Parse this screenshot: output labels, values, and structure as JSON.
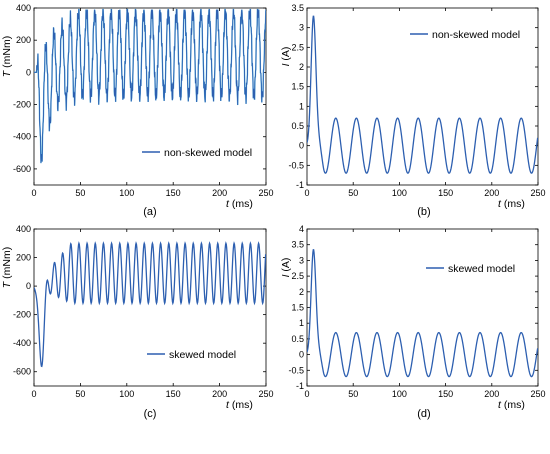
{
  "figure": {
    "colors": {
      "line": "#2d5fb0",
      "line_light": "#5db8e0",
      "axes": "#000000"
    }
  },
  "chart_data": [
    {
      "id": "a",
      "type": "line",
      "caption": "(a)",
      "ylabel_var": "T",
      "ylabel_unit": "(mNm)",
      "xlabel_var": "t",
      "xlabel_unit": "(ms)",
      "xlim": [
        0,
        250
      ],
      "ylim": [
        -700,
        400
      ],
      "xticks": [
        0,
        50,
        100,
        150,
        200,
        250
      ],
      "yticks": [
        400,
        200,
        0,
        -200,
        -400,
        -600
      ],
      "legend": "non-skewed model",
      "legend_position": "lower-right",
      "series": [
        {
          "name": "non-skewed model",
          "envelope": {
            "max": [
              [
                5,
                70
              ],
              [
                20,
                240
              ],
              [
                50,
                380
              ],
              [
                250,
                380
              ]
            ],
            "min": [
              [
                5,
                -650
              ],
              [
                12,
                -400
              ],
              [
                25,
                -200
              ],
              [
                50,
                -150
              ],
              [
                250,
                -150
              ]
            ]
          },
          "period_ms": 8.8,
          "noise": "high-frequency ripple"
        }
      ]
    },
    {
      "id": "b",
      "type": "line",
      "caption": "(b)",
      "ylabel_var": "I",
      "ylabel_unit": "(A)",
      "xlabel_var": "t",
      "xlabel_unit": "(ms)",
      "xlim": [
        0,
        250
      ],
      "ylim": [
        -1,
        3.5
      ],
      "xticks": [
        0,
        50,
        100,
        150,
        200,
        250
      ],
      "yticks": [
        3.5,
        3,
        2.5,
        2,
        1.5,
        1,
        0.5,
        0,
        -0.5,
        -1
      ],
      "legend": "non-skewed model",
      "legend_position": "top-right",
      "series": [
        {
          "name": "non-skewed model",
          "peak": {
            "t": 7,
            "value": 3.3
          },
          "first_min": {
            "t": 20,
            "value": -0.93
          },
          "steady_amplitude": 0.7,
          "steady_offset": 0,
          "period_ms": 22.3
        }
      ]
    },
    {
      "id": "c",
      "type": "line",
      "caption": "(c)",
      "ylabel_var": "T",
      "ylabel_unit": "(mNm)",
      "xlabel_var": "t",
      "xlabel_unit": "(ms)",
      "xlim": [
        0,
        250
      ],
      "ylim": [
        -700,
        400
      ],
      "xticks": [
        0,
        50,
        100,
        150,
        200,
        250
      ],
      "yticks": [
        400,
        200,
        0,
        -200,
        -400,
        -600
      ],
      "legend": "skewed model",
      "legend_position": "lower-center",
      "series": [
        {
          "name": "skewed model",
          "dip": {
            "t": 8,
            "value": -545
          },
          "steady_max": 300,
          "steady_min": -120,
          "period_ms": 8.8
        }
      ]
    },
    {
      "id": "d",
      "type": "line",
      "caption": "(d)",
      "ylabel_var": "I",
      "ylabel_unit": "(A)",
      "xlabel_var": "t",
      "xlabel_unit": "(ms)",
      "xlim": [
        0,
        250
      ],
      "ylim": [
        -1,
        4
      ],
      "xticks": [
        0,
        50,
        100,
        150,
        200,
        250
      ],
      "yticks": [
        4,
        3.5,
        3,
        2.5,
        2,
        1.5,
        1,
        0.5,
        0,
        -0.5,
        -1
      ],
      "legend": "skewed model",
      "legend_position": "top-right",
      "series": [
        {
          "name": "skewed model",
          "peak": {
            "t": 7,
            "value": 3.35
          },
          "first_min": {
            "t": 20,
            "value": -0.92
          },
          "steady_amplitude": 0.7,
          "steady_offset": 0,
          "period_ms": 22.3
        }
      ]
    }
  ]
}
